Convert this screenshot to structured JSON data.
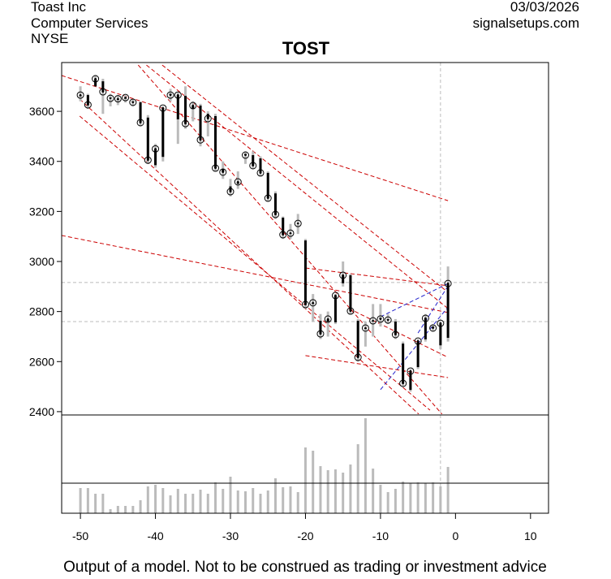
{
  "chart_data": {
    "type": "candlestick",
    "company": "Toast Inc",
    "sector": "Computer Services",
    "exchange": "NYSE",
    "date": "03/03/2026",
    "source": "signalsetups.com",
    "title": "TOST",
    "footnote": "Output of a model. Not to be construed as trading or investment advice",
    "x": [
      -50,
      -49,
      -48,
      -47,
      -46,
      -45,
      -44,
      -43,
      -42,
      -41,
      -40,
      -39,
      -38,
      -37,
      -36,
      -35,
      -34,
      -33,
      -32,
      -31,
      -30,
      -29,
      -28,
      -27,
      -26,
      -25,
      -24,
      -23,
      -22,
      -21,
      -20,
      -19,
      -18,
      -17,
      -16,
      -15,
      -14,
      -13,
      -12,
      -11,
      -10,
      -9,
      -8,
      -7,
      -6,
      -5,
      -4,
      -3,
      -2,
      -1
    ],
    "open": [
      3660,
      3665,
      3700,
      3720,
      3655,
      3645,
      3650,
      3640,
      3636,
      3575,
      3385,
      3418,
      3670,
      3568,
      3662,
      3610,
      3623,
      3590,
      3581,
      3370,
      3300,
      3310,
      3430,
      3425,
      3412,
      3354,
      3272,
      3175,
      3110,
      3150,
      3084,
      2830,
      2763,
      2760,
      2757,
      2913,
      2945,
      2763,
      2730,
      2760,
      2775,
      2770,
      2760,
      2672,
      2487,
      2578,
      2689,
      2740,
      2665,
      2695
    ],
    "high": [
      3700,
      3670,
      3745,
      3730,
      3670,
      3665,
      3665,
      3650,
      3640,
      3585,
      3470,
      3620,
      3690,
      3675,
      3700,
      3640,
      3630,
      3600,
      3590,
      3400,
      3330,
      3360,
      3440,
      3440,
      3420,
      3360,
      3280,
      3180,
      3150,
      3190,
      3090,
      2870,
      2790,
      2800,
      2870,
      3000,
      2950,
      2770,
      2760,
      2830,
      2830,
      2790,
      2770,
      2680,
      2570,
      2690,
      2790,
      2750,
      2760,
      2980
    ],
    "low": [
      3640,
      3610,
      3700,
      3590,
      3620,
      3625,
      3635,
      3620,
      3540,
      3390,
      3375,
      3400,
      3640,
      3470,
      3530,
      3560,
      3460,
      3500,
      3360,
      3330,
      3260,
      3290,
      3390,
      3370,
      3340,
      3240,
      3170,
      3090,
      3090,
      3110,
      2810,
      2760,
      2690,
      2700,
      2750,
      2900,
      2790,
      2600,
      2660,
      2700,
      2740,
      2750,
      2690,
      2500,
      2480,
      2570,
      2680,
      2720,
      2650,
      2680
    ],
    "close": [
      3665,
      3626,
      3730,
      3678,
      3652,
      3650,
      3655,
      3636,
      3555,
      3405,
      3450,
      3613,
      3665,
      3665,
      3551,
      3623,
      3486,
      3571,
      3373,
      3357,
      3279,
      3318,
      3425,
      3383,
      3354,
      3253,
      3188,
      3107,
      3113,
      3152,
      2828,
      2835,
      2711,
      2770,
      2864,
      2945,
      2802,
      2617,
      2734,
      2763,
      2770,
      2766,
      2708,
      2513,
      2562,
      2682,
      2773,
      2734,
      2753,
      2912
    ],
    "volume": [
      31,
      31,
      24,
      24,
      5,
      9,
      9,
      9,
      16,
      33,
      35,
      31,
      22,
      30,
      24,
      24,
      29,
      24,
      38,
      30,
      45,
      28,
      27,
      31,
      24,
      28,
      43,
      32,
      33,
      26,
      81,
      77,
      58,
      53,
      54,
      50,
      60,
      85,
      117,
      55,
      35,
      26,
      30,
      39,
      37,
      38,
      37,
      38,
      33,
      57
    ],
    "volume_lim": [
      0,
      121
    ],
    "volume_line": 37,
    "trend_lines": [
      {
        "color": "#cc0000",
        "points": [
          [
            -52.5,
            3743
          ],
          [
            -1.0,
            3243
          ]
        ]
      },
      {
        "color": "#cc0000",
        "points": [
          [
            -52.5,
            3104
          ],
          [
            -1.0,
            2796
          ]
        ]
      },
      {
        "color": "#cc0000",
        "points": [
          [
            -50.1,
            3581
          ],
          [
            -3.4,
            2406
          ]
        ]
      },
      {
        "color": "#cc0000",
        "points": [
          [
            -50.1,
            3649
          ],
          [
            -4.9,
            2390
          ]
        ]
      },
      {
        "color": "#cc0000",
        "points": [
          [
            -42.3,
            3785
          ],
          [
            -1.8,
            2390
          ]
        ]
      },
      {
        "color": "#cc0000",
        "points": [
          [
            -41.2,
            3785
          ],
          [
            -1.0,
            2812
          ]
        ]
      },
      {
        "color": "#cc0000",
        "points": [
          [
            -39.1,
            3785
          ],
          [
            -1.0,
            2877
          ]
        ]
      },
      {
        "color": "#cc0000",
        "points": [
          [
            -20.0,
            2974
          ],
          [
            -1.0,
            2903
          ]
        ]
      },
      {
        "color": "#cc0000",
        "points": [
          [
            -20.0,
            2624
          ],
          [
            -1.0,
            2536
          ]
        ]
      },
      {
        "color": "#cc0000",
        "points": [
          [
            -14.2,
            2812
          ],
          [
            -1.0,
            2617
          ]
        ]
      },
      {
        "color": "#2222cc",
        "points": [
          [
            -10.0,
            2779
          ],
          [
            -1.0,
            2912
          ]
        ]
      },
      {
        "color": "#2222cc",
        "points": [
          [
            -10.0,
            2488
          ],
          [
            -1.0,
            2818
          ]
        ]
      },
      {
        "color": "#2222cc",
        "points": [
          [
            -5.0,
            2714
          ],
          [
            -1.0,
            2902
          ]
        ]
      }
    ],
    "hlines": [
      2916,
      2760
    ],
    "vline": -2.0,
    "xlim": [
      -52.5,
      12.4
    ],
    "xticks": [
      -50,
      -40,
      -30,
      -20,
      -10,
      0,
      10
    ],
    "ylim": [
      2390,
      3795
    ],
    "yticks": [
      2400,
      2600,
      2800,
      3000,
      3200,
      3400,
      3600
    ]
  }
}
